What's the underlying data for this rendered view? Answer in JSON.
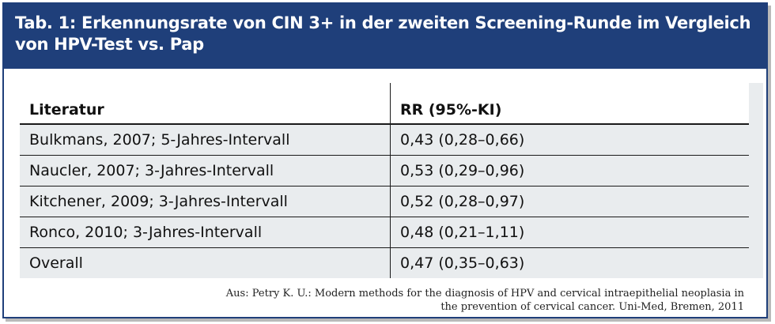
{
  "table": {
    "title": "Tab. 1: Erkennungsrate von CIN 3+ in der zweiten Screening-Runde im Vergleich von HPV-Test vs. Pap",
    "headers": [
      "Literatur",
      "RR (95%-KI)"
    ],
    "rows": [
      [
        "Bulkmans, 2007; 5-Jahres-Intervall",
        "0,43 (0,28–0,66)"
      ],
      [
        "Naucler, 2007; 3-Jahres-Intervall",
        "0,53 (0,29–0,96)"
      ],
      [
        "Kitchener, 2009; 3-Jahres-Intervall",
        "0,52 (0,28–0,97)"
      ],
      [
        "Ronco, 2010; 3-Jahres-Intervall",
        "0,48 (0,21–1,11)"
      ],
      [
        "Overall",
        "0,47 (0,35–0,63)"
      ]
    ],
    "source_line1": "Aus: Petry K. U.: Modern methods for the diagnosis of HPV and cervical intraepithelial neoplasia in",
    "source_line2": "the prevention of cervical cancer. Uni-Med, Bremen, 2011"
  },
  "colors": {
    "header_bg": "#1f3f7a",
    "row_bg": "#e9ecee"
  }
}
